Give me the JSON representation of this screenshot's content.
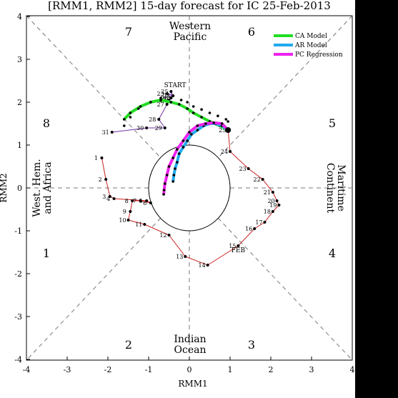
{
  "title": "[RMM1, RMM2] 15-day forecast for IC 25-Feb-2013",
  "xlabel": "RMM1",
  "ylabel": "RMM2",
  "phases": [
    "1",
    "2",
    "3",
    "4",
    "5",
    "6",
    "7",
    "8"
  ],
  "regions": {
    "top": [
      "Western",
      "Pacific"
    ],
    "bottom": [
      "Indian",
      "Ocean"
    ],
    "left": [
      "West. Hem.",
      "and Africa"
    ],
    "right": [
      "Maritime",
      "Continent"
    ]
  },
  "colors": {
    "observed_feb": "#cc2222",
    "observed_jan": "#7733aa",
    "ca_model": "#22dd22",
    "ar_model": "#22aaee",
    "pc_regression": "#ee22ee",
    "spread_dots": "#000000"
  },
  "chart_data": {
    "type": "line",
    "title": "[RMM1, RMM2] 15-day forecast for IC 25-Feb-2013",
    "xlabel": "RMM1",
    "ylabel": "RMM2",
    "xlim": [
      -4,
      4
    ],
    "ylim": [
      -4,
      4
    ],
    "xticks": [
      "-4",
      "-3",
      "-2",
      "-1",
      "0",
      "1",
      "2",
      "3",
      "4"
    ],
    "yticks": [
      "-4",
      "-3",
      "-2",
      "-1",
      "0",
      "1",
      "2",
      "3",
      "4"
    ],
    "grid": false,
    "legend_position": "top-right",
    "legend": [
      "CA Model",
      "AR Model",
      "PC Regression"
    ],
    "annotations": {
      "start": {
        "text": "START",
        "x": -0.35,
        "y": 2.35
      },
      "feb": {
        "text": "FEB",
        "x": 1.2,
        "y": -1.5
      }
    },
    "observed_jan": {
      "days": [
        "21",
        "22",
        "23",
        "24",
        "25",
        "26",
        "27",
        "28",
        "29",
        "30",
        "31"
      ],
      "x": [
        -0.5,
        -0.45,
        -0.55,
        -0.4,
        -0.45,
        -0.45,
        -0.55,
        -0.75,
        -0.6,
        -1.05,
        -1.9
      ],
      "y": [
        2.05,
        2.1,
        2.2,
        2.15,
        2.25,
        2.1,
        1.95,
        1.6,
        1.4,
        1.4,
        1.3
      ]
    },
    "observed_feb": {
      "days": [
        "1",
        "2",
        "3",
        "4",
        "5",
        "6",
        "7",
        "8",
        "9",
        "10",
        "11",
        "12",
        "13",
        "14",
        "15",
        "16",
        "17",
        "18",
        "19",
        "20",
        "21",
        "22",
        "23",
        "24",
        "25"
      ],
      "x": [
        -2.15,
        -2.05,
        -1.95,
        -1.85,
        -1.05,
        -0.95,
        -1.2,
        -1.4,
        -1.45,
        -1.5,
        -1.1,
        -0.5,
        -0.1,
        0.45,
        1.2,
        1.6,
        1.85,
        2.05,
        2.2,
        2.15,
        2.05,
        1.8,
        1.45,
        1.0,
        0.95
      ],
      "y": [
        0.7,
        0.2,
        -0.2,
        -0.25,
        -0.3,
        -0.35,
        -0.3,
        -0.3,
        -0.55,
        -0.75,
        -0.85,
        -1.1,
        -1.6,
        -1.8,
        -1.35,
        -0.95,
        -0.8,
        -0.55,
        -0.4,
        -0.3,
        -0.1,
        0.2,
        0.45,
        0.85,
        1.35
      ]
    },
    "series": [
      {
        "name": "CA Model",
        "x": [
          0.95,
          0.75,
          0.5,
          0.3,
          0.1,
          -0.05,
          -0.25,
          -0.45,
          -0.7,
          -0.95,
          -1.2,
          -1.45,
          -1.6
        ],
        "y": [
          1.35,
          1.45,
          1.55,
          1.65,
          1.75,
          1.85,
          1.95,
          2.0,
          2.05,
          2.0,
          1.9,
          1.75,
          1.6
        ],
        "spread": {
          "x": [
            0.95,
            0.9,
            0.7,
            0.5,
            0.3,
            0.1,
            -0.05,
            -0.2,
            -0.45,
            -0.7,
            -0.95,
            -1.25,
            -1.45,
            -1.6
          ],
          "y": [
            1.55,
            1.6,
            1.68,
            1.75,
            1.83,
            1.9,
            2.0,
            2.05,
            2.1,
            2.1,
            2.0,
            1.85,
            1.65,
            1.45
          ]
        }
      },
      {
        "name": "AR Model",
        "x": [
          0.95,
          0.8,
          0.65,
          0.5,
          0.35,
          0.2,
          0.05,
          -0.05,
          -0.15,
          -0.25,
          -0.3,
          -0.35,
          -0.38,
          -0.4
        ],
        "y": [
          1.35,
          1.45,
          1.5,
          1.5,
          1.45,
          1.35,
          1.25,
          1.1,
          0.95,
          0.8,
          0.6,
          0.45,
          0.3,
          0.15
        ]
      },
      {
        "name": "PC Regression",
        "x": [
          0.95,
          0.8,
          0.6,
          0.4,
          0.2,
          0.0,
          -0.15,
          -0.3,
          -0.4,
          -0.5,
          -0.55,
          -0.6,
          -0.62,
          -0.63
        ],
        "y": [
          1.35,
          1.5,
          1.52,
          1.5,
          1.45,
          1.3,
          1.1,
          0.9,
          0.7,
          0.5,
          0.3,
          0.1,
          -0.05,
          -0.15
        ]
      }
    ]
  }
}
